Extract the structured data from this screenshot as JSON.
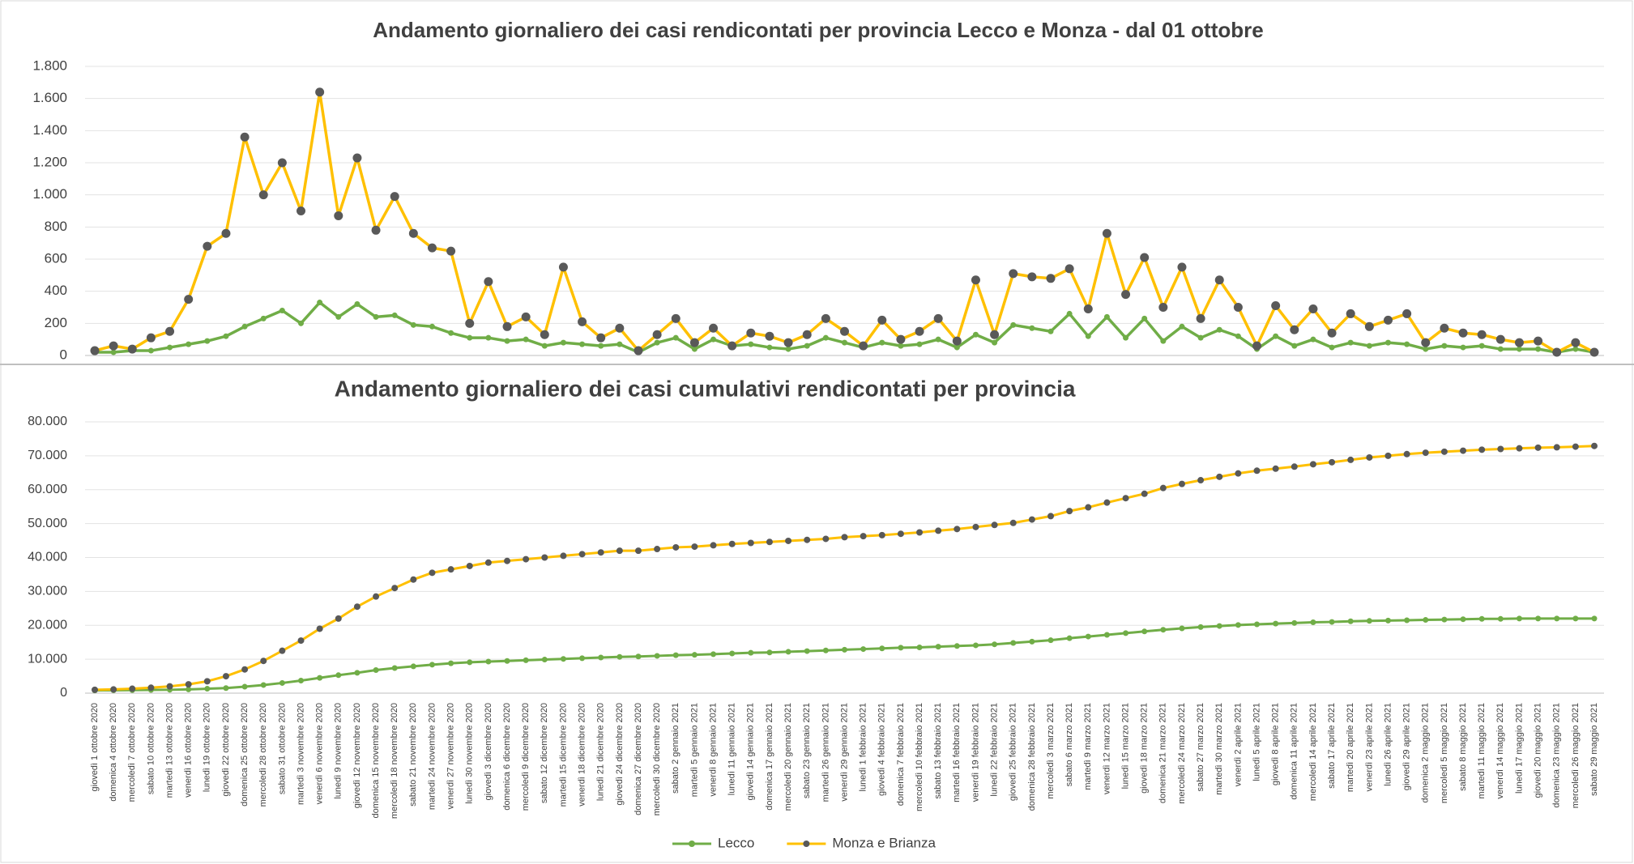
{
  "chart_data": [
    {
      "type": "line",
      "title": "Andamento giornaliero dei casi rendicontati per provincia Lecco e Monza - dal 01 ottobre",
      "ylim": [
        0,
        1800
      ],
      "yticks": [
        0,
        200,
        400,
        600,
        800,
        {
          "value": 1000,
          "label": "1.000"
        },
        {
          "value": 1200,
          "label": "1.200"
        },
        {
          "value": 1400,
          "label": "1.400"
        },
        {
          "value": 1600,
          "label": "1.600"
        },
        {
          "value": 1800,
          "label": "1.800"
        }
      ],
      "grid": true,
      "marker_color": "#595959",
      "series": [
        {
          "color": "#70ad47",
          "values": [
            20,
            20,
            30,
            30,
            50,
            70,
            90,
            120,
            180,
            230,
            280,
            200,
            330,
            240,
            320,
            240,
            250,
            190,
            180,
            140,
            110,
            110,
            90,
            100,
            60,
            80,
            70,
            60,
            70,
            20,
            80,
            110,
            40,
            100,
            60,
            70,
            50,
            40,
            60,
            110,
            80,
            50,
            80,
            60,
            70,
            100,
            50,
            130,
            80,
            190,
            170,
            150,
            260,
            120,
            240,
            110,
            230,
            90,
            180,
            110,
            160,
            120,
            40,
            120,
            60,
            100,
            50,
            80,
            60,
            80,
            70,
            40,
            60,
            50,
            60,
            40,
            40,
            40,
            20,
            40,
            20
          ]
        },
        {
          "color": "#ffc000",
          "values": [
            30,
            60,
            40,
            110,
            150,
            350,
            680,
            760,
            1360,
            1000,
            1200,
            900,
            1640,
            870,
            1230,
            780,
            990,
            760,
            670,
            650,
            200,
            460,
            180,
            240,
            130,
            550,
            210,
            110,
            170,
            30,
            130,
            230,
            80,
            170,
            60,
            140,
            120,
            80,
            130,
            230,
            150,
            60,
            220,
            100,
            150,
            230,
            90,
            470,
            130,
            510,
            490,
            480,
            540,
            290,
            760,
            380,
            610,
            300,
            550,
            230,
            470,
            300,
            60,
            310,
            160,
            290,
            140,
            260,
            180,
            220,
            260,
            80,
            170,
            140,
            130,
            100,
            80,
            90,
            20,
            80,
            20
          ]
        }
      ]
    },
    {
      "type": "line",
      "title": "Andamento giornaliero dei casi cumulativi rendicontati per provincia",
      "categories": [
        "giovedì 1 ottobre 2020",
        "domenica 4 ottobre 2020",
        "mercoledì 7 ottobre 2020",
        "sabato 10 ottobre 2020",
        "martedì 13 ottobre 2020",
        "venerdì 16 ottobre 2020",
        "lunedì 19 ottobre 2020",
        "giovedì 22 ottobre 2020",
        "domenica 25 ottobre 2020",
        "mercoledì 28 ottobre 2020",
        "sabato 31 ottobre 2020",
        "martedì 3 novembre 2020",
        "venerdì 6 novembre 2020",
        "lunedì 9 novembre 2020",
        "giovedì 12 novembre 2020",
        "domenica 15 novembre 2020",
        "mercoledì 18 novembre 2020",
        "sabato 21 novembre 2020",
        "martedì 24 novembre 2020",
        "venerdì 27 novembre 2020",
        "lunedì 30 novembre 2020",
        "giovedì 3 dicembre 2020",
        "domenica 6 dicembre 2020",
        "mercoledì 9 dicembre 2020",
        "sabato 12 dicembre 2020",
        "martedì 15 dicembre 2020",
        "venerdì 18 dicembre 2020",
        "lunedì 21 dicembre 2020",
        "giovedì 24 dicembre 2020",
        "domenica 27 dicembre 2020",
        "mercoledì 30 dicembre 2020",
        "sabato 2 gennaio 2021",
        "martedì 5 gennaio 2021",
        "venerdì 8 gennaio 2021",
        "lunedì 11 gennaio 2021",
        "giovedì 14 gennaio 2021",
        "domenica 17 gennaio 2021",
        "mercoledì 20 gennaio 2021",
        "sabato 23 gennaio 2021",
        "martedì 26 gennaio 2021",
        "venerdì 29 gennaio 2021",
        "lunedì 1 febbraio 2021",
        "giovedì 4 febbraio 2021",
        "domenica 7 febbraio 2021",
        "mercoledì 10 febbraio 2021",
        "sabato 13 febbraio 2021",
        "martedì 16 febbraio 2021",
        "venerdì 19 febbraio 2021",
        "lunedì 22 febbraio 2021",
        "giovedì 25 febbraio 2021",
        "domenica 28 febbraio 2021",
        "mercoledì 3 marzo 2021",
        "sabato 6 marzo 2021",
        "martedì 9 marzo 2021",
        "venerdì 12 marzo 2021",
        "lunedì 15 marzo 2021",
        "giovedì 18 marzo 2021",
        "domenica 21 marzo 2021",
        "mercoledì 24 marzo 2021",
        "sabato 27 marzo 2021",
        "martedì 30 marzo 2021",
        "venerdì 2 aprile 2021",
        "lunedì 5 aprile 2021",
        "giovedì 8 aprile 2021",
        "domenica 11 aprile 2021",
        "mercoledì 14 aprile 2021",
        "sabato 17 aprile 2021",
        "martedì 20 aprile 2021",
        "venerdì 23 aprile 2021",
        "lunedì 26 aprile 2021",
        "giovedì 29 aprile 2021",
        "domenica 2 maggio 2021",
        "mercoledì 5 maggio 2021",
        "sabato 8 maggio 2021",
        "martedì 11 maggio 2021",
        "venerdì 14 maggio 2021",
        "lunedì 17 maggio 2021",
        "giovedì 20 maggio 2021",
        "domenica 23 maggio 2021",
        "mercoledì 26 maggio 2021",
        "sabato 29 maggio 2021"
      ],
      "ylim": [
        0,
        80000
      ],
      "yticks": [
        0,
        {
          "value": 10000,
          "label": "10.000"
        },
        {
          "value": 20000,
          "label": "20.000"
        },
        {
          "value": 30000,
          "label": "30.000"
        },
        {
          "value": 40000,
          "label": "40.000"
        },
        {
          "value": 50000,
          "label": "50.000"
        },
        {
          "value": 60000,
          "label": "60.000"
        },
        {
          "value": 70000,
          "label": "70.000"
        },
        {
          "value": 80000,
          "label": "80.000"
        }
      ],
      "grid": true,
      "legend": "bottom",
      "series": [
        {
          "name": "Lecco",
          "color": "#70ad47",
          "values": [
            800,
            850,
            900,
            950,
            1000,
            1100,
            1300,
            1500,
            1900,
            2400,
            3000,
            3700,
            4500,
            5300,
            6000,
            6800,
            7400,
            7900,
            8400,
            8800,
            9100,
            9300,
            9500,
            9700,
            9900,
            10100,
            10300,
            10500,
            10700,
            10800,
            11000,
            11200,
            11300,
            11500,
            11700,
            11900,
            12000,
            12200,
            12400,
            12600,
            12800,
            13000,
            13200,
            13400,
            13500,
            13700,
            13900,
            14100,
            14400,
            14800,
            15200,
            15600,
            16200,
            16700,
            17200,
            17700,
            18200,
            18700,
            19100,
            19500,
            19800,
            20100,
            20300,
            20500,
            20700,
            20900,
            21000,
            21200,
            21300,
            21400,
            21500,
            21600,
            21700,
            21800,
            21900,
            21900,
            22000,
            22000,
            22000,
            22000,
            22000
          ]
        },
        {
          "name": "Monza e Brianza",
          "color": "#ffc000",
          "marker_color": "#595959",
          "values": [
            1000,
            1100,
            1300,
            1600,
            2000,
            2600,
            3500,
            5000,
            7000,
            9500,
            12500,
            15500,
            19000,
            22000,
            25500,
            28500,
            31000,
            33500,
            35500,
            36500,
            37500,
            38500,
            39000,
            39500,
            40000,
            40500,
            41000,
            41500,
            42000,
            42000,
            42500,
            43000,
            43200,
            43600,
            44000,
            44300,
            44600,
            44900,
            45200,
            45500,
            46000,
            46300,
            46600,
            47000,
            47400,
            47900,
            48400,
            49000,
            49600,
            50200,
            51200,
            52200,
            53700,
            54800,
            56200,
            57500,
            58800,
            60500,
            61700,
            62800,
            63800,
            64800,
            65600,
            66200,
            66800,
            67500,
            68100,
            68800,
            69500,
            70000,
            70500,
            70900,
            71200,
            71500,
            71800,
            72000,
            72200,
            72400,
            72500,
            72700,
            72900
          ]
        }
      ]
    }
  ]
}
